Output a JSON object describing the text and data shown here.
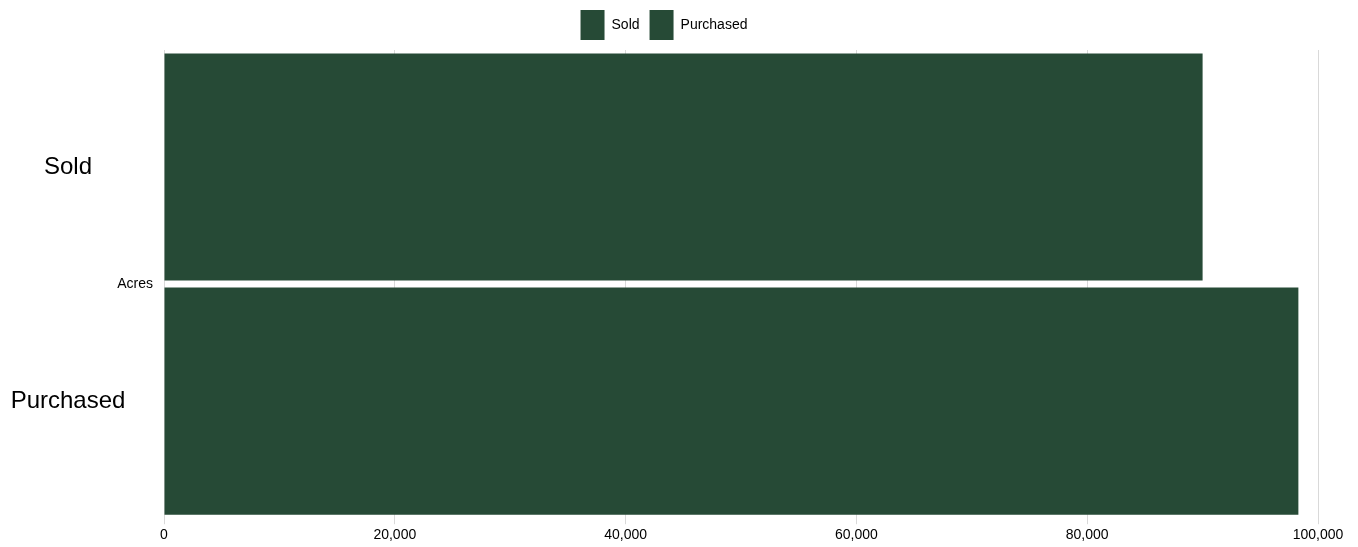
{
  "chart_data": {
    "type": "bar",
    "orientation": "horizontal",
    "categories": [
      "Acres"
    ],
    "series": [
      {
        "name": "Sold",
        "color": "#264a36",
        "values": [
          90000
        ]
      },
      {
        "name": "Purchased",
        "color": "#264a36",
        "values": [
          98300
        ]
      }
    ],
    "xlim": [
      0,
      100000
    ],
    "xticks": [
      {
        "value": 0,
        "label": "0"
      },
      {
        "value": 20000,
        "label": "20,000"
      },
      {
        "value": 40000,
        "label": "40,000"
      },
      {
        "value": 60000,
        "label": "60,000"
      },
      {
        "value": 80000,
        "label": "80,000"
      },
      {
        "value": 100000,
        "label": "100,000"
      }
    ],
    "grid": "x",
    "legend": "top"
  }
}
